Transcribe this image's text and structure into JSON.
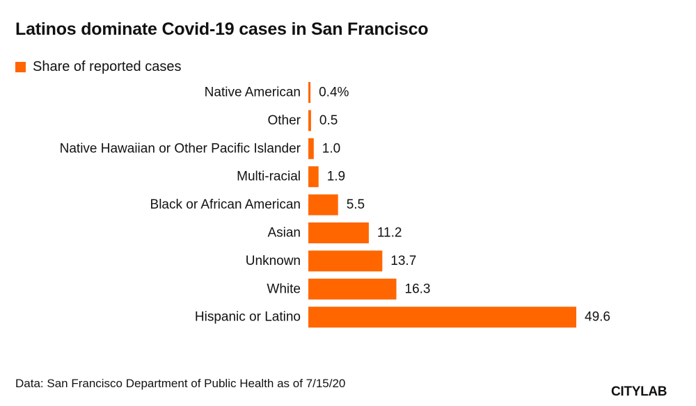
{
  "colors": {
    "bar": "#ff6600",
    "text": "#111111",
    "background": "#ffffff"
  },
  "chart_data": {
    "type": "bar",
    "orientation": "horizontal",
    "title": "Latinos dominate Covid-19 cases in San Francisco",
    "legend": "Share of reported cases",
    "legend_position": "top-left",
    "unit": "%",
    "categories": [
      "Native American",
      "Other",
      "Native Hawaiian or Other Pacific Islander",
      "Multi-racial",
      "Black or African American",
      "Asian",
      "Unknown",
      "White",
      "Hispanic or Latino"
    ],
    "values": [
      0.4,
      0.5,
      1.0,
      1.9,
      5.5,
      11.2,
      13.7,
      16.3,
      49.6
    ],
    "value_labels": [
      "0.4%",
      "0.5",
      "1.0",
      "1.9",
      "5.5",
      "11.2",
      "13.7",
      "16.3",
      "49.6"
    ],
    "xlim": [
      0,
      49.6
    ],
    "grid": false,
    "xlabel": "",
    "ylabel": ""
  },
  "footer": {
    "source": "Data: San Francisco Department of Public Health as of 7/15/20",
    "logo": "CITYLAB"
  }
}
